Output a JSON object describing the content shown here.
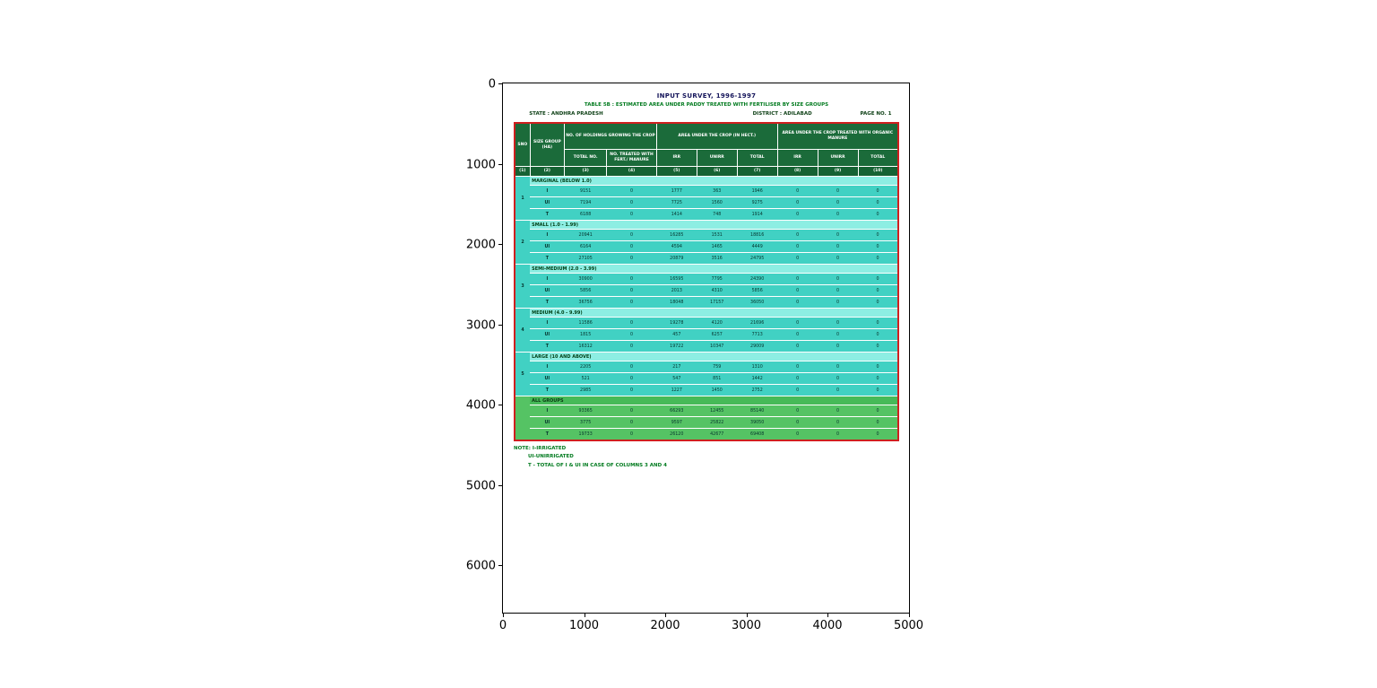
{
  "figure": {
    "x_ticks": [
      "0",
      "1000",
      "2000",
      "3000",
      "4000",
      "5000"
    ],
    "y_ticks": [
      "0",
      "1000",
      "2000",
      "3000",
      "4000",
      "5000",
      "6000"
    ]
  },
  "colors": {
    "table_border_red": "#cf1f1f",
    "header_green": "#1b6b3a",
    "body_teal": "#41d1c3",
    "section_teal": "#8deee3",
    "allgroups_green": "#55c364",
    "note_green": "#007a1e",
    "title_navy": "#14145a"
  },
  "document": {
    "title": "INPUT SURVEY, 1996-1997",
    "subtitle": "TABLE 5B : ESTIMATED AREA UNDER PADDY TREATED WITH FERTILISER BY SIZE GROUPS",
    "state": "STATE : ANDHRA PRADESH",
    "district": "DISTRICT : ADILABAD",
    "page": "PAGE NO. 1",
    "notes": [
      "NOTE: I-IRRIGATED",
      "UI-UNIRRIGATED",
      "T - TOTAL OF I & UI IN CASE OF COLUMNS 3 AND 4"
    ]
  },
  "table": {
    "header_row1": [
      {
        "label": "SNO",
        "rowspan": 2,
        "colspan": 1
      },
      {
        "label": "SIZE GROUP (HA)",
        "rowspan": 2,
        "colspan": 1
      },
      {
        "label": "NO. OF HOLDINGS GROWING THE CROP",
        "rowspan": 1,
        "colspan": 2
      },
      {
        "label": "AREA UNDER THE CROP (IN HECT.)",
        "rowspan": 1,
        "colspan": 3
      },
      {
        "label": "AREA UNDER THE CROP TREATED WITH ORGANIC MANURE",
        "rowspan": 1,
        "colspan": 3
      }
    ],
    "header_row2": [
      "TOTAL NO.",
      "NO. TREATED WITH FERT./ MANURE",
      "IRR",
      "UNIRR",
      "TOTAL",
      "IRR",
      "UNIRR",
      "TOTAL"
    ],
    "col_numbers": [
      "(1)",
      "(2)",
      "(3)",
      "(4)",
      "(5)",
      "(6)",
      "(7)",
      "(8)",
      "(9)",
      "(10)"
    ],
    "groups": [
      {
        "sno": "1",
        "label": "MARGINAL (BELOW 1.0)",
        "green": false,
        "rows": [
          {
            "code": "I",
            "values": [
              "9151",
              "0",
              "1777",
              "363",
              "1946",
              "0",
              "0",
              "0"
            ]
          },
          {
            "code": "UI",
            "values": [
              "7194",
              "0",
              "7725",
              "1560",
              "9275",
              "0",
              "0",
              "0"
            ]
          },
          {
            "code": "T",
            "values": [
              "6188",
              "0",
              "1414",
              "748",
              "1914",
              "0",
              "0",
              "0"
            ]
          }
        ]
      },
      {
        "sno": "2",
        "label": "SMALL (1.0 - 1.99)",
        "green": false,
        "rows": [
          {
            "code": "I",
            "values": [
              "20941",
              "0",
              "16285",
              "1531",
              "18816",
              "0",
              "0",
              "0"
            ]
          },
          {
            "code": "UI",
            "values": [
              "6164",
              "0",
              "4594",
              "1465",
              "4449",
              "0",
              "0",
              "0"
            ]
          },
          {
            "code": "T",
            "values": [
              "27105",
              "0",
              "20879",
              "3516",
              "24795",
              "0",
              "0",
              "0"
            ]
          }
        ]
      },
      {
        "sno": "3",
        "label": "SEMI-MEDIUM (2.0 - 3.99)",
        "green": false,
        "rows": [
          {
            "code": "I",
            "values": [
              "30900",
              "0",
              "16595",
              "7795",
              "24390",
              "0",
              "0",
              "0"
            ]
          },
          {
            "code": "UI",
            "values": [
              "5856",
              "0",
              "2013",
              "4310",
              "5856",
              "0",
              "0",
              "0"
            ]
          },
          {
            "code": "T",
            "values": [
              "36756",
              "0",
              "18048",
              "17157",
              "36050",
              "0",
              "0",
              "0"
            ]
          }
        ]
      },
      {
        "sno": "4",
        "label": "MEDIUM (4.0 - 9.99)",
        "green": false,
        "rows": [
          {
            "code": "I",
            "values": [
              "11586",
              "0",
              "19278",
              "4120",
              "21696",
              "0",
              "0",
              "0"
            ]
          },
          {
            "code": "UI",
            "values": [
              "1815",
              "0",
              "457",
              "6257",
              "7713",
              "0",
              "0",
              "0"
            ]
          },
          {
            "code": "T",
            "values": [
              "16312",
              "0",
              "19722",
              "10347",
              "29009",
              "0",
              "0",
              "0"
            ]
          }
        ]
      },
      {
        "sno": "5",
        "label": "LARGE (10 AND ABOVE)",
        "green": false,
        "rows": [
          {
            "code": "I",
            "values": [
              "2205",
              "0",
              "217",
              "759",
              "1310",
              "0",
              "0",
              "0"
            ]
          },
          {
            "code": "UI",
            "values": [
              "521",
              "0",
              "547",
              "851",
              "1442",
              "0",
              "0",
              "0"
            ]
          },
          {
            "code": "T",
            "values": [
              "2985",
              "0",
              "1227",
              "1450",
              "2752",
              "0",
              "0",
              "0"
            ]
          }
        ]
      },
      {
        "sno": "",
        "label": "ALL GROUPS",
        "green": true,
        "rows": [
          {
            "code": "I",
            "values": [
              "93365",
              "0",
              "66293",
              "12455",
              "85140",
              "0",
              "0",
              "0"
            ]
          },
          {
            "code": "UI",
            "values": [
              "3775",
              "0",
              "9597",
              "25822",
              "39050",
              "0",
              "0",
              "0"
            ]
          },
          {
            "code": "T",
            "values": [
              "19733",
              "0",
              "26120",
              "42677",
              "69408",
              "0",
              "0",
              "0"
            ]
          }
        ]
      }
    ]
  }
}
